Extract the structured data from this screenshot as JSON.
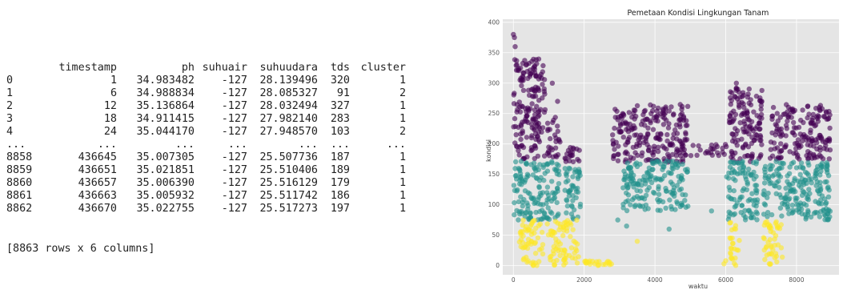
{
  "dataframe": {
    "columns": [
      "",
      "timestamp",
      "ph",
      "suhuair",
      "suhuudara",
      "tds",
      "cluster"
    ],
    "rows": [
      [
        "0",
        "1",
        "34.983482",
        "-127",
        "28.139496",
        "320",
        "1"
      ],
      [
        "1",
        "6",
        "34.988834",
        "-127",
        "28.085327",
        "91",
        "2"
      ],
      [
        "2",
        "12",
        "35.136864",
        "-127",
        "28.032494",
        "327",
        "1"
      ],
      [
        "3",
        "18",
        "34.911415",
        "-127",
        "27.982140",
        "283",
        "1"
      ],
      [
        "4",
        "24",
        "35.044170",
        "-127",
        "27.948570",
        "103",
        "2"
      ],
      [
        "...",
        "...",
        "...",
        "...",
        "...",
        "...",
        "..."
      ],
      [
        "8858",
        "436645",
        "35.007305",
        "-127",
        "25.507736",
        "187",
        "1"
      ],
      [
        "8859",
        "436651",
        "35.021851",
        "-127",
        "25.510406",
        "189",
        "1"
      ],
      [
        "8860",
        "436657",
        "35.006390",
        "-127",
        "25.516129",
        "179",
        "1"
      ],
      [
        "8861",
        "436663",
        "35.005932",
        "-127",
        "25.511742",
        "186",
        "1"
      ],
      [
        "8862",
        "436670",
        "35.022755",
        "-127",
        "25.517273",
        "197",
        "1"
      ]
    ],
    "summary": "[8863 rows x 6 columns]"
  },
  "chart_data": {
    "type": "scatter",
    "title": "Pemetaan Kondisi Lingkungan Tanam",
    "xlabel": "waktu",
    "ylabel": "kondisi",
    "xlim": [
      -300,
      9200
    ],
    "ylim": [
      -15,
      405
    ],
    "xticks": [
      0,
      2000,
      4000,
      6000,
      8000
    ],
    "yticks": [
      0,
      50,
      100,
      150,
      200,
      250,
      300,
      350,
      400
    ],
    "grid": true,
    "background": "#e5e5e5",
    "colors": {
      "high": "#440154",
      "mid": "#21918c",
      "low": "#fde725"
    },
    "bands": [
      {
        "name": "high",
        "color": "#440154",
        "blocks": [
          [
            0,
            900,
            175,
            340
          ],
          [
            960,
            1320,
            175,
            245
          ],
          [
            1450,
            1900,
            170,
            195
          ],
          [
            2800,
            4950,
            170,
            265
          ],
          [
            5000,
            6020,
            180,
            200
          ],
          [
            6100,
            7050,
            170,
            295
          ],
          [
            7250,
            8950,
            175,
            265
          ]
        ],
        "spikes": [
          [
            0,
            380
          ],
          [
            30,
            375
          ],
          [
            50,
            360
          ],
          [
            100,
            330
          ],
          [
            800,
            308
          ],
          [
            1100,
            300
          ],
          [
            1250,
            270
          ],
          [
            6300,
            300
          ],
          [
            6500,
            280
          ]
        ]
      },
      {
        "name": "mid",
        "color": "#21918c",
        "blocks": [
          [
            0,
            1320,
            75,
            172
          ],
          [
            1450,
            1900,
            75,
            172
          ],
          [
            3100,
            4950,
            90,
            172
          ],
          [
            6020,
            6900,
            75,
            172
          ],
          [
            7050,
            8950,
            75,
            172
          ]
        ],
        "spikes": [
          [
            2950,
            75
          ],
          [
            3200,
            65
          ],
          [
            5600,
            90
          ],
          [
            4400,
            60
          ]
        ]
      },
      {
        "name": "low",
        "color": "#fde725",
        "blocks": [
          [
            150,
            850,
            0,
            75
          ],
          [
            950,
            1350,
            0,
            75
          ],
          [
            1400,
            1850,
            0,
            75
          ],
          [
            1900,
            2800,
            0,
            8
          ],
          [
            6100,
            6400,
            0,
            75
          ],
          [
            7050,
            7600,
            0,
            75
          ]
        ],
        "spikes": [
          [
            3500,
            40
          ],
          [
            5950,
            3
          ],
          [
            6000,
            8
          ],
          [
            2300,
            3
          ],
          [
            2600,
            2
          ]
        ]
      }
    ]
  }
}
